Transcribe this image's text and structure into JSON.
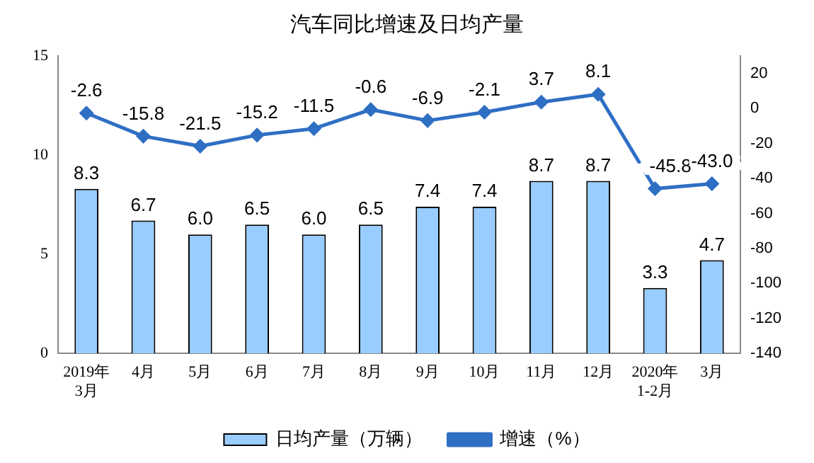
{
  "chart_data": {
    "type": "bar",
    "title": "汽车同比增速及日均产量",
    "categories": [
      "2019年\n3月",
      "4月",
      "5月",
      "6月",
      "7月",
      "8月",
      "9月",
      "10月",
      "11月",
      "12月",
      "2020年\n1-2月",
      "3月"
    ],
    "series": [
      {
        "name": "日均产量（万辆）",
        "color": "#99ccff",
        "values": [
          8.3,
          6.7,
          6.0,
          6.5,
          6.0,
          6.5,
          7.4,
          7.4,
          8.7,
          8.7,
          3.3,
          4.7
        ],
        "value_labels": [
          "8.3",
          "6.7",
          "6.0",
          "6.5",
          "6.0",
          "6.5",
          "7.4",
          "7.4",
          "8.7",
          "8.7",
          "3.3",
          "4.7"
        ]
      },
      {
        "name": "增速（%）",
        "type": "line",
        "axis": "y2",
        "color": "#2e6fc4",
        "marker": "diamond",
        "values": [
          -2.6,
          -15.8,
          -21.5,
          -15.2,
          -11.5,
          -0.6,
          -6.9,
          -2.1,
          3.7,
          8.1,
          -45.8,
          -43.0
        ],
        "value_labels": [
          "-2.6",
          "-15.8",
          "-21.5",
          "-15.2",
          "-11.5",
          "-0.6",
          "-6.9",
          "-2.1",
          "3.7",
          "8.1",
          "-45.8",
          "-43.0"
        ]
      }
    ],
    "ylim": [
      0,
      15
    ],
    "yticks": [
      0,
      5,
      10,
      15
    ],
    "y2lim": [
      -140,
      30
    ],
    "y2ticks": [
      -140,
      -120,
      -100,
      -80,
      -60,
      -40,
      -20,
      0,
      20
    ],
    "grid": false,
    "legend": "bottom"
  }
}
